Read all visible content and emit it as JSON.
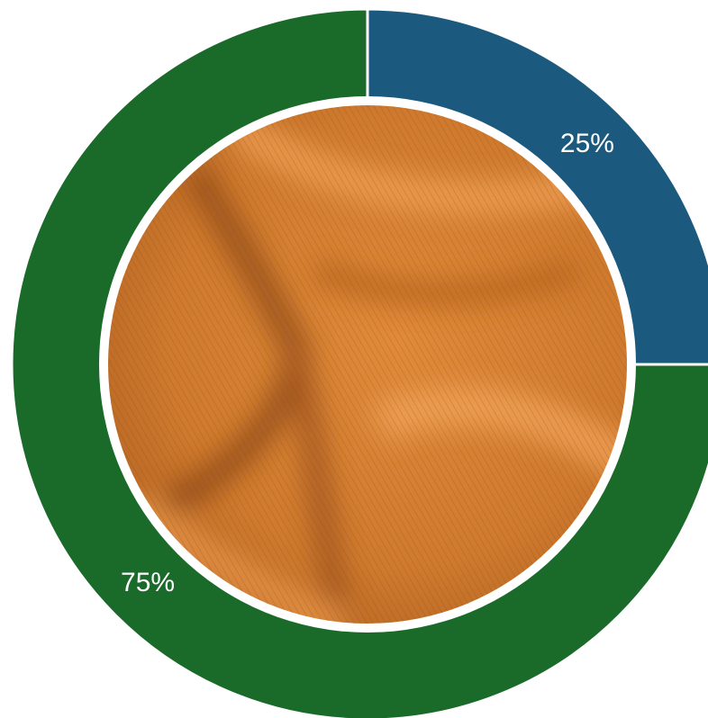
{
  "chart_data": {
    "type": "pie",
    "donut": true,
    "values": [
      25,
      75
    ],
    "value_labels": [
      "25%",
      "75%"
    ],
    "colors": [
      "#1b5a7e",
      "#1a6a2a"
    ]
  }
}
